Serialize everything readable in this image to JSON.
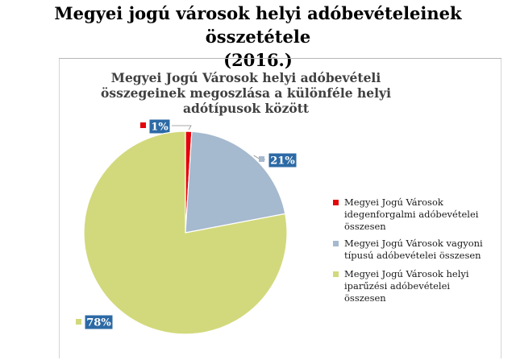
{
  "header": {
    "title_line1": "Megyei jogú városok helyi adóbevételeinek összetétele",
    "title_line2": "(2016.)"
  },
  "chart_data": {
    "type": "pie",
    "title_lines": [
      "Megyei Jogú Városok helyi adóbevételi",
      "összegeinek megoszlása a különféle helyi",
      "adótípusok között"
    ],
    "slices": [
      {
        "name": "Megyei Jogú Városok idegenforgalmi adóbevételei összesen",
        "value": 1,
        "label": "1%",
        "color": "#e4050c"
      },
      {
        "name": "Megyei Jogú Városok vagyoni típusú adóbevételei összesen",
        "value": 21,
        "label": "21%",
        "color": "#a5b9cf"
      },
      {
        "name": "Megyei Jogú Városok helyi iparűzési adóbevételei összesen",
        "value": 78,
        "label": "78%",
        "color": "#d2d97c"
      }
    ],
    "legend_position": "right",
    "data_label_color": "#2c6aa5"
  }
}
